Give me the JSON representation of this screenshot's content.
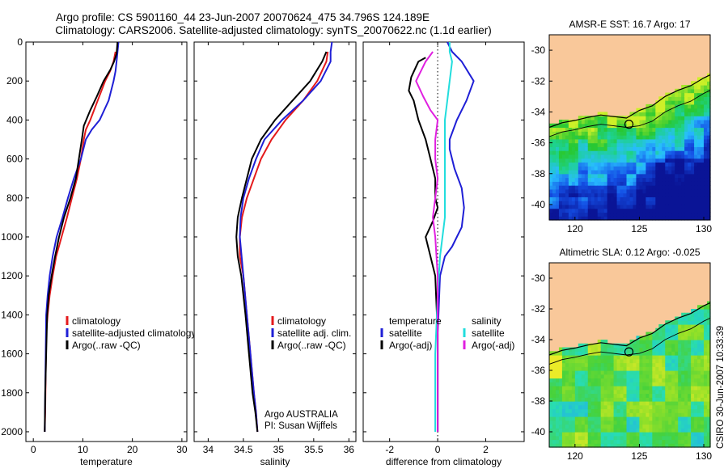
{
  "title": {
    "line1": "Argo profile: CS 5901160_44 23-Jun-2007 20070624_475 34.796S 124.189E",
    "line2": "Climatology: CARS2006. Satellite-adjusted climatology: synTS_20070622.nc (1.1d earlier)"
  },
  "side_label": "CSIRO 30-Jun-2007 10:33:39",
  "colors": {
    "climatology": "#e41a1c",
    "satellite": "#1f1fd6",
    "argo": "#000000",
    "sat_diff": "#22dddd",
    "argo_adj_diff": "#e020e0",
    "land": "#f9c89a"
  },
  "chart_data": [
    {
      "type": "line",
      "panel": "temperature",
      "xlabel": "temperature",
      "ylabel": "",
      "xlim": [
        -1.5,
        31
      ],
      "ylim": [
        2050,
        0
      ],
      "xticks": [
        "0",
        "10",
        "20",
        "30"
      ],
      "yticks": [
        "0",
        "200",
        "400",
        "600",
        "800",
        "1000",
        "1200",
        "1400",
        "1600",
        "1800",
        "2000"
      ],
      "legend": [
        "climatology",
        "satellite-adjusted climatology",
        "Argo(..raw -QC)"
      ],
      "series": [
        {
          "name": "climatology",
          "color_key": "climatology",
          "x": [
            16.6,
            16.2,
            15.5,
            14.5,
            13.0,
            11.5,
            10.6,
            10.2,
            9.6,
            8.8,
            7.8,
            6.8,
            5.7,
            4.6,
            3.9,
            3.3,
            2.9,
            2.6,
            2.5,
            2.4,
            2.3
          ],
          "y": [
            50,
            100,
            150,
            200,
            300,
            400,
            450,
            500,
            600,
            700,
            800,
            900,
            1000,
            1100,
            1200,
            1300,
            1400,
            1500,
            1700,
            1900,
            2000
          ]
        },
        {
          "name": "satellite-adjusted climatology",
          "color_key": "satellite",
          "x": [
            17.2,
            17.0,
            16.8,
            16.6,
            16.2,
            15.2,
            13.4,
            11.8,
            10.6,
            9.6,
            8.2,
            7.0,
            5.9,
            4.7,
            3.9,
            3.3,
            2.9,
            2.6,
            2.5,
            2.4,
            2.3
          ],
          "y": [
            0,
            50,
            100,
            150,
            200,
            300,
            400,
            450,
            500,
            600,
            700,
            800,
            900,
            1000,
            1100,
            1200,
            1300,
            1400,
            1600,
            1800,
            2000
          ]
        },
        {
          "name": "Argo(..raw -QC)",
          "color_key": "argo",
          "x": [
            17.0,
            16.8,
            16.3,
            15.6,
            14.2,
            12.8,
            11.5,
            10.2,
            9.8,
            9.2,
            8.6,
            7.5,
            6.2,
            5.2,
            4.4,
            3.7,
            3.1,
            2.8,
            2.6,
            2.4,
            2.3
          ],
          "y": [
            0,
            60,
            100,
            140,
            200,
            280,
            350,
            430,
            500,
            600,
            700,
            800,
            900,
            1000,
            1100,
            1200,
            1300,
            1400,
            1600,
            1800,
            2000
          ]
        }
      ]
    },
    {
      "type": "line",
      "panel": "salinity",
      "xlabel": "salinity",
      "ylabel": "",
      "xlim": [
        33.8,
        36.1
      ],
      "ylim": [
        2050,
        0
      ],
      "xticks": [
        "34",
        "34.5",
        "35",
        "35.5",
        "36"
      ],
      "yticks": [],
      "legend": [
        "climatology",
        "satellite adj. clim.",
        "Argo(..raw -QC)"
      ],
      "annotation": [
        "Argo AUSTRALIA",
        "PI: Susan Wijffels"
      ],
      "series": [
        {
          "name": "climatology",
          "color_key": "climatology",
          "x": [
            35.7,
            35.68,
            35.55,
            35.35,
            35.1,
            34.9,
            34.75,
            34.65,
            34.55,
            34.48,
            34.45,
            34.45,
            34.5,
            34.55,
            34.6,
            34.65,
            34.68,
            34.7
          ],
          "y": [
            50,
            100,
            200,
            300,
            400,
            500,
            600,
            700,
            800,
            900,
            1000,
            1100,
            1200,
            1400,
            1600,
            1800,
            1900,
            2000
          ]
        },
        {
          "name": "satellite adj. clim.",
          "color_key": "satellite",
          "x": [
            35.76,
            35.74,
            35.74,
            35.6,
            35.35,
            35.05,
            34.8,
            34.68,
            34.58,
            34.5,
            34.46,
            34.45,
            34.5,
            34.55,
            34.6,
            34.65,
            34.68,
            34.7
          ],
          "y": [
            0,
            50,
            100,
            200,
            300,
            400,
            500,
            600,
            700,
            800,
            900,
            1000,
            1200,
            1400,
            1600,
            1800,
            1900,
            2000
          ]
        },
        {
          "name": "Argo(..raw -QC)",
          "color_key": "argo",
          "x": [
            35.68,
            35.62,
            35.45,
            35.2,
            34.95,
            34.75,
            34.62,
            34.55,
            34.48,
            34.42,
            34.4,
            34.42,
            34.47,
            34.53,
            34.58,
            34.63,
            34.67,
            34.7
          ],
          "y": [
            50,
            100,
            200,
            300,
            400,
            500,
            600,
            700,
            800,
            900,
            1000,
            1100,
            1200,
            1400,
            1600,
            1800,
            1900,
            2000
          ]
        }
      ]
    },
    {
      "type": "line",
      "panel": "difference",
      "xlabel": "difference from climatology",
      "ylabel": "",
      "xlim": [
        -3.1,
        3.6
      ],
      "ylim": [
        2050,
        0
      ],
      "xticks": [
        "-2",
        "0",
        "2"
      ],
      "yticks": [],
      "legend_headers": [
        "temperature",
        "salinity"
      ],
      "legend": [
        "satellite",
        "Argo(-adj)",
        "satellite",
        "Argo(-adj)"
      ],
      "series": [
        {
          "name": "temperature satellite",
          "color_key": "satellite",
          "x": [
            0.4,
            0.6,
            1.0,
            1.5,
            1.2,
            0.8,
            0.5,
            0.5,
            0.7,
            1.0,
            1.1,
            1.0,
            0.8,
            0.6,
            0.3,
            0.1,
            0.0,
            0.0
          ],
          "y": [
            0,
            50,
            100,
            200,
            300,
            400,
            500,
            550,
            650,
            750,
            850,
            950,
            1000,
            1050,
            1100,
            1200,
            1500,
            2000
          ]
        },
        {
          "name": "temperature Argo(-adj)",
          "color_key": "argo",
          "x": [
            -0.5,
            -0.8,
            -1.1,
            -1.2,
            -1.0,
            -0.8,
            -0.5,
            -0.3,
            -0.1,
            -0.1,
            0.0,
            -0.2,
            -0.5,
            -0.3,
            -0.1,
            0.0,
            0.0
          ],
          "y": [
            80,
            100,
            180,
            250,
            300,
            400,
            500,
            600,
            700,
            800,
            850,
            920,
            1000,
            1100,
            1200,
            1500,
            2000
          ]
        },
        {
          "name": "salinity satellite",
          "color_key": "sat_diff",
          "x": [
            0.5,
            0.5,
            0.6,
            0.5,
            0.4,
            0.3,
            0.3,
            0.3,
            0.3,
            0.2,
            0.1,
            0.0,
            -0.1,
            -0.1
          ],
          "y": [
            0,
            50,
            100,
            200,
            300,
            400,
            500,
            700,
            900,
            1000,
            1100,
            1300,
            1600,
            2000
          ]
        },
        {
          "name": "salinity Argo(-adj)",
          "color_key": "argo_adj_diff",
          "x": [
            -0.2,
            -0.5,
            -0.9,
            -0.6,
            -0.3,
            0.0,
            -0.1,
            -0.1,
            0.0,
            -0.1,
            -0.2,
            -0.1,
            0.0,
            0.0
          ],
          "y": [
            50,
            100,
            200,
            280,
            350,
            400,
            500,
            600,
            700,
            800,
            900,
            1000,
            1200,
            2000
          ]
        }
      ]
    },
    {
      "type": "heatmap",
      "panel": "sst_map",
      "title": "AMSR-E SST: 16.7 Argo: 17",
      "xlim": [
        118,
        130.5
      ],
      "ylim": [
        -41,
        -29
      ],
      "xticks": [
        "120",
        "125",
        "130"
      ],
      "yticks": [
        "-30",
        "-32",
        "-34",
        "-36",
        "-38",
        "-40"
      ],
      "profile_position": {
        "lon": 124.189,
        "lat": -34.796
      },
      "coast_lon": [
        118,
        119,
        120,
        121,
        122,
        123,
        124,
        125,
        126,
        127,
        128,
        129,
        130,
        130.5
      ],
      "coast_lat": [
        -35.0,
        -34.7,
        -34.55,
        -34.35,
        -34.2,
        -34.3,
        -34.4,
        -33.9,
        -33.6,
        -33.0,
        -32.6,
        -32.3,
        -31.8,
        -31.6
      ]
    },
    {
      "type": "heatmap",
      "panel": "sla_map",
      "title": "Altimetric SLA: 0.12 Argo: -0.025",
      "xlim": [
        118,
        130.5
      ],
      "ylim": [
        -41,
        -29
      ],
      "xticks": [
        "120",
        "125",
        "130"
      ],
      "yticks": [
        "-30",
        "-32",
        "-34",
        "-36",
        "-38",
        "-40"
      ],
      "profile_position": {
        "lon": 124.189,
        "lat": -34.796
      },
      "coast_lon": [
        118,
        119,
        120,
        121,
        122,
        123,
        124,
        125,
        126,
        127,
        128,
        129,
        130,
        130.5
      ],
      "coast_lat": [
        -35.0,
        -34.7,
        -34.55,
        -34.35,
        -34.2,
        -34.3,
        -34.4,
        -33.9,
        -33.6,
        -33.0,
        -32.6,
        -32.3,
        -31.8,
        -31.6
      ]
    }
  ]
}
